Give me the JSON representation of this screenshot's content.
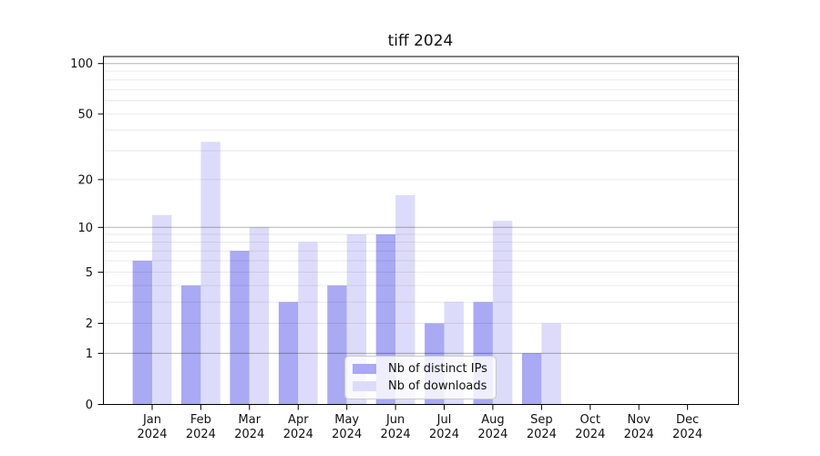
{
  "figure": {
    "title": "tiff 2024",
    "background_color": "#ffffff"
  },
  "chart_data": {
    "type": "bar",
    "title": "tiff 2024",
    "categories": [
      "Jan",
      "Feb",
      "Mar",
      "Apr",
      "May",
      "Jun",
      "Jul",
      "Aug",
      "Sep",
      "Oct",
      "Nov",
      "Dec"
    ],
    "category_year_line": "2024",
    "series": [
      {
        "name": "Nb of distinct IPs",
        "color": "#a9a9f4",
        "values": [
          6,
          4,
          7,
          3,
          4,
          9,
          2,
          3,
          1,
          0,
          0,
          0
        ]
      },
      {
        "name": "Nb of downloads",
        "color": "#dcdcfa",
        "values": [
          12,
          34,
          10,
          8,
          9,
          16,
          3,
          11,
          2,
          0,
          0,
          0
        ]
      }
    ],
    "xlabel": "",
    "ylabel": "",
    "yscale": "log1p",
    "y_tick_values": [
      0,
      1,
      2,
      5,
      10,
      20,
      50,
      100
    ],
    "y_tick_labels": [
      "0",
      "1",
      "2",
      "5",
      "10",
      "20",
      "50",
      "100"
    ],
    "y_major_gridlines": [
      1,
      10,
      100
    ],
    "y_minor_gridlines": [
      2,
      3,
      4,
      5,
      6,
      7,
      8,
      9,
      20,
      30,
      40,
      50,
      60,
      70,
      80,
      90
    ],
    "ylim": [
      0,
      112
    ],
    "grid": "horizontal",
    "legend_position": "lower center inside plot",
    "bar_baseline": 0
  },
  "legend": {
    "items": [
      {
        "label": "Nb of distinct IPs",
        "color": "#a9a9f4"
      },
      {
        "label": "Nb of downloads",
        "color": "#dcdcfa"
      }
    ]
  },
  "colors": {
    "series_distinct_ips": "#a9a9f4",
    "series_downloads": "#dcdcfa",
    "major_gridline": "rgba(0,0,0,0.30)",
    "minor_gridline": "rgba(0,0,0,0.085)",
    "axis_spine": "#000000",
    "tick_mark": "#000000",
    "text": "#111111",
    "legend_border": "#c9c9c9",
    "legend_background": "rgba(255,255,255,0.8)"
  }
}
